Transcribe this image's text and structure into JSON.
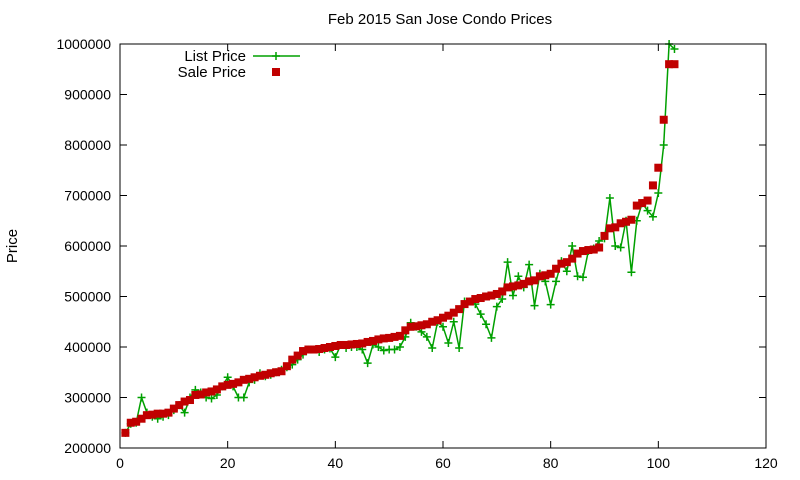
{
  "chart_data": {
    "type": "line",
    "title": "Feb 2015 San Jose Condo Prices",
    "xlabel": "",
    "ylabel": "Price",
    "xlim": [
      0,
      120
    ],
    "ylim": [
      200000,
      1000000
    ],
    "x_ticks": [
      0,
      20,
      40,
      60,
      80,
      100,
      120
    ],
    "y_ticks": [
      200000,
      300000,
      400000,
      500000,
      600000,
      700000,
      800000,
      900000,
      1000000
    ],
    "x_tick_labels": [
      "0",
      "20",
      "40",
      "60",
      "80",
      "100",
      "120"
    ],
    "y_tick_labels": [
      "200000",
      "300000",
      "400000",
      "500000",
      "600000",
      "700000",
      "800000",
      "900000",
      "1000000"
    ],
    "grid": false,
    "legend_position": "top-left",
    "series": [
      {
        "name": "List Price",
        "style": "linespoints",
        "marker": "plus",
        "color": "#00a000",
        "x": [
          1,
          2,
          3,
          4,
          5,
          6,
          7,
          8,
          9,
          10,
          11,
          12,
          13,
          14,
          15,
          16,
          17,
          18,
          19,
          20,
          21,
          22,
          23,
          24,
          25,
          26,
          27,
          28,
          29,
          30,
          31,
          32,
          33,
          34,
          35,
          36,
          37,
          38,
          39,
          40,
          41,
          42,
          43,
          44,
          45,
          46,
          47,
          48,
          49,
          50,
          51,
          52,
          53,
          54,
          55,
          56,
          57,
          58,
          59,
          60,
          61,
          62,
          63,
          64,
          65,
          66,
          67,
          68,
          69,
          70,
          71,
          72,
          73,
          74,
          75,
          76,
          77,
          78,
          79,
          80,
          81,
          82,
          83,
          84,
          85,
          86,
          87,
          88,
          89,
          90,
          91,
          92,
          93,
          94,
          95,
          96,
          97,
          98,
          99,
          100,
          101,
          102,
          103
        ],
        "y": [
          230000,
          248000,
          250000,
          300000,
          270000,
          262000,
          258000,
          262000,
          265000,
          275000,
          285000,
          270000,
          300000,
          315000,
          310000,
          300000,
          298000,
          305000,
          322000,
          340000,
          322000,
          300000,
          300000,
          330000,
          335000,
          348000,
          342000,
          345000,
          350000,
          355000,
          360000,
          365000,
          375000,
          385000,
          395000,
          395000,
          390000,
          395000,
          397000,
          380000,
          404000,
          398000,
          400000,
          400000,
          395000,
          368000,
          405000,
          400000,
          393000,
          395000,
          395000,
          400000,
          420000,
          448000,
          440000,
          430000,
          420000,
          398000,
          450000,
          440000,
          408000,
          450000,
          398000,
          490000,
          490000,
          485000,
          465000,
          445000,
          418000,
          480000,
          495000,
          568000,
          502000,
          540000,
          518000,
          563000,
          482000,
          545000,
          530000,
          484000,
          530000,
          570000,
          550000,
          600000,
          540000,
          538000,
          590000,
          595000,
          610000,
          615000,
          695000,
          600000,
          597000,
          650000,
          548000,
          650000,
          685000,
          670000,
          658000,
          705000,
          800000,
          1000000,
          990000
        ]
      },
      {
        "name": "Sale Price",
        "style": "points",
        "marker": "square",
        "color": "#c00000",
        "x": [
          1,
          2,
          3,
          4,
          5,
          6,
          7,
          8,
          9,
          10,
          11,
          12,
          13,
          14,
          15,
          16,
          17,
          18,
          19,
          20,
          21,
          22,
          23,
          24,
          25,
          26,
          27,
          28,
          29,
          30,
          31,
          32,
          33,
          34,
          35,
          36,
          37,
          38,
          39,
          40,
          41,
          42,
          43,
          44,
          45,
          46,
          47,
          48,
          49,
          50,
          51,
          52,
          53,
          54,
          55,
          56,
          57,
          58,
          59,
          60,
          61,
          62,
          63,
          64,
          65,
          66,
          67,
          68,
          69,
          70,
          71,
          72,
          73,
          74,
          75,
          76,
          77,
          78,
          79,
          80,
          81,
          82,
          83,
          84,
          85,
          86,
          87,
          88,
          89,
          90,
          91,
          92,
          93,
          94,
          95,
          96,
          97,
          98,
          99,
          100,
          101,
          102,
          103
        ],
        "y": [
          230000,
          250000,
          252000,
          258000,
          265000,
          266000,
          268000,
          268000,
          270000,
          278000,
          285000,
          292000,
          295000,
          305000,
          306000,
          310000,
          312000,
          316000,
          322000,
          325000,
          327000,
          330000,
          335000,
          337000,
          340000,
          343000,
          345000,
          348000,
          350000,
          352000,
          362000,
          375000,
          383000,
          392000,
          395000,
          395000,
          396000,
          398000,
          400000,
          402000,
          404000,
          404000,
          405000,
          406000,
          407000,
          410000,
          412000,
          415000,
          417000,
          418000,
          420000,
          422000,
          433000,
          440000,
          441000,
          443000,
          445000,
          450000,
          453000,
          458000,
          462000,
          468000,
          475000,
          485000,
          490000,
          495000,
          497000,
          500000,
          502000,
          505000,
          510000,
          518000,
          520000,
          522000,
          525000,
          530000,
          532000,
          540000,
          542000,
          545000,
          555000,
          565000,
          568000,
          575000,
          585000,
          590000,
          592000,
          593000,
          597000,
          620000,
          635000,
          637000,
          645000,
          648000,
          652000,
          680000,
          685000,
          690000,
          720000,
          755000,
          850000,
          960000,
          960000
        ]
      }
    ]
  },
  "colors": {
    "list_price": "#00a000",
    "sale_price": "#c00000",
    "axis": "#000000",
    "background": "#ffffff"
  }
}
